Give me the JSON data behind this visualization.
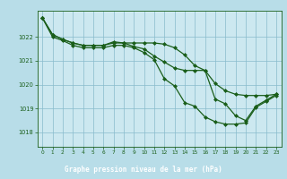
{
  "background_color": "#b8dde8",
  "plot_bg_color": "#cce8f0",
  "grid_color": "#88bbcc",
  "line_color": "#1a5e1a",
  "marker_color": "#1a5e1a",
  "label_bg_color": "#2a7a2a",
  "label_text_color": "#ffffff",
  "title": "Graphe pression niveau de la mer (hPa)",
  "xlim": [
    -0.5,
    23.5
  ],
  "ylim": [
    1017.4,
    1023.1
  ],
  "yticks": [
    1018,
    1019,
    1020,
    1021,
    1022
  ],
  "xticks": [
    0,
    1,
    2,
    3,
    4,
    5,
    6,
    7,
    8,
    9,
    10,
    11,
    12,
    13,
    14,
    15,
    16,
    17,
    18,
    19,
    20,
    21,
    22,
    23
  ],
  "series1": [
    1022.8,
    1022.1,
    1021.9,
    1021.75,
    1021.65,
    1021.65,
    1021.65,
    1021.75,
    1021.75,
    1021.75,
    1021.75,
    1021.75,
    1021.7,
    1021.55,
    1021.25,
    1020.8,
    1020.6,
    1020.05,
    1019.75,
    1019.6,
    1019.55,
    1019.55,
    1019.55,
    1019.6
  ],
  "series2": [
    1022.8,
    1022.1,
    1021.9,
    1021.75,
    1021.65,
    1021.65,
    1021.65,
    1021.8,
    1021.75,
    1021.6,
    1021.5,
    1021.2,
    1020.95,
    1020.7,
    1020.6,
    1020.6,
    1020.6,
    1019.4,
    1019.2,
    1018.7,
    1018.5,
    1019.1,
    1019.35,
    1019.6
  ],
  "series3": [
    1022.8,
    1022.0,
    1021.85,
    1021.65,
    1021.55,
    1021.55,
    1021.55,
    1021.65,
    1021.65,
    1021.55,
    1021.35,
    1021.05,
    1020.25,
    1019.95,
    1019.25,
    1019.1,
    1018.65,
    1018.45,
    1018.35,
    1018.35,
    1018.4,
    1019.05,
    1019.3,
    1019.55
  ]
}
